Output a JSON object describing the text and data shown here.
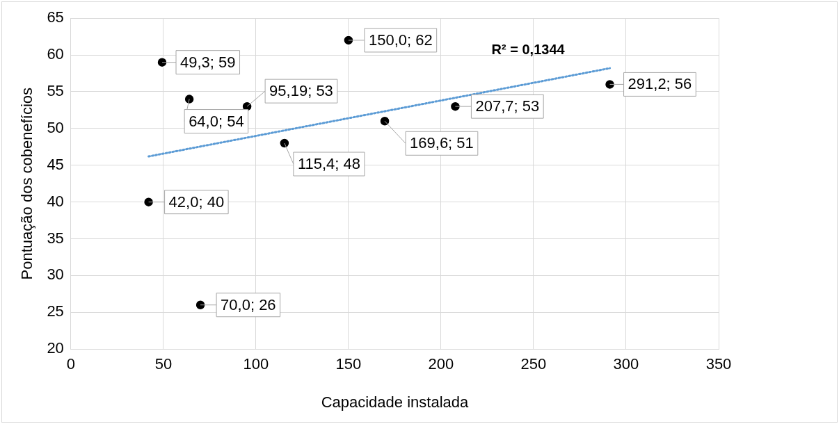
{
  "chart_data": {
    "type": "scatter",
    "xlabel": "Capacidade instalada",
    "ylabel": "Pontuação dos cobenefícios",
    "xlim": [
      0,
      350
    ],
    "xticks": [
      0,
      50,
      100,
      150,
      200,
      250,
      300,
      350
    ],
    "ylim": [
      20,
      65
    ],
    "yticks": [
      20,
      25,
      30,
      35,
      40,
      45,
      50,
      55,
      60,
      65
    ],
    "grid": true,
    "legend": false,
    "marker": "circle",
    "series": [
      {
        "color": "#000000",
        "x": [
          49.3,
          150.0,
          95.19,
          64.0,
          207.7,
          291.2,
          169.6,
          115.4,
          42.0,
          70.0
        ],
        "values": [
          59,
          62,
          53,
          54,
          53,
          56,
          51,
          48,
          40,
          26
        ],
        "value_labels": [
          "49,3; 59",
          "150,0; 62",
          "95,19; 53",
          "64,0; 54",
          "207,7; 53",
          "291,2; 56",
          "169,6; 51",
          "115,4; 48",
          "42,0; 40",
          "70,0; 26"
        ]
      },
      {
        "type": "line",
        "color": "#5b9bd5",
        "line_style": "dotted",
        "marker": "none",
        "x": [
          42,
          291.2
        ],
        "values": [
          46.2,
          58.2
        ]
      }
    ],
    "annotations": [
      "R² = 0,1344"
    ]
  }
}
